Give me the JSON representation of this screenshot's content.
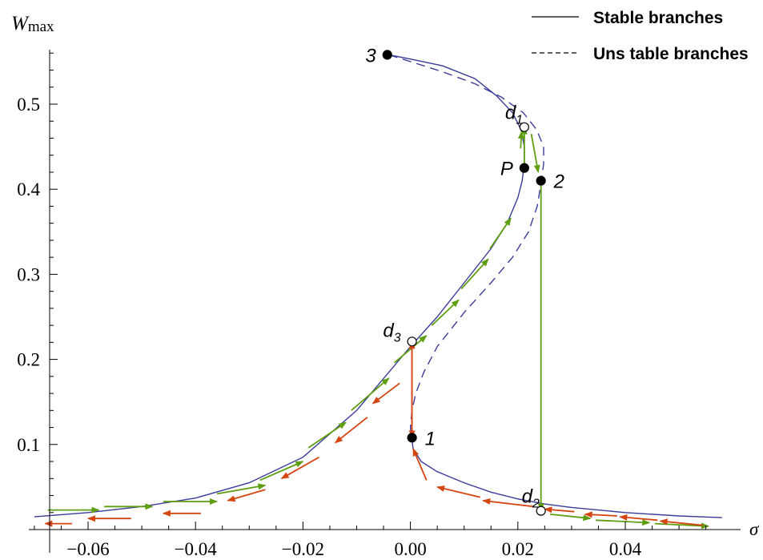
{
  "chart_data": {
    "type": "line",
    "xlabel": "σ",
    "ylabel_main": "W",
    "ylabel_sub": "max",
    "xlim": [
      -0.07,
      0.058
    ],
    "ylim": [
      0,
      0.58
    ],
    "x_ticks": [
      {
        "value": -0.06,
        "label": "−0.06"
      },
      {
        "value": -0.04,
        "label": "−0.04"
      },
      {
        "value": -0.02,
        "label": "−0.02"
      },
      {
        "value": 0.0,
        "label": "0.00"
      },
      {
        "value": 0.02,
        "label": "0.02"
      },
      {
        "value": 0.04,
        "label": "0.04"
      }
    ],
    "y_ticks": [
      {
        "value": 0.1,
        "label": "0.1"
      },
      {
        "value": 0.2,
        "label": "0.2"
      },
      {
        "value": 0.3,
        "label": "0.3"
      },
      {
        "value": 0.4,
        "label": "0.4"
      },
      {
        "value": 0.5,
        "label": "0.5"
      }
    ],
    "legend": {
      "placement": "top-right",
      "entries": [
        {
          "label": "Stable branches",
          "style": "solid"
        },
        {
          "label": "Uns table branches",
          "style": "dashed"
        }
      ]
    },
    "colors": {
      "curve": "#3b3b99",
      "green_arrows": "#5e9e10",
      "red_arrows": "#d44510",
      "axis": "#000000"
    },
    "series": [
      {
        "style": "solid",
        "points": [
          [
            -0.07,
            0.015
          ],
          [
            -0.06,
            0.02
          ],
          [
            -0.05,
            0.027
          ],
          [
            -0.04,
            0.037
          ],
          [
            -0.03,
            0.055
          ],
          [
            -0.02,
            0.085
          ],
          [
            -0.01,
            0.14
          ],
          [
            0.0,
            0.215
          ],
          [
            0.005,
            0.25
          ],
          [
            0.01,
            0.29
          ],
          [
            0.015,
            0.33
          ],
          [
            0.018,
            0.36
          ],
          [
            0.02,
            0.39
          ],
          [
            0.0208,
            0.41
          ],
          [
            0.0212,
            0.43
          ],
          [
            0.0212,
            0.45
          ],
          [
            0.0206,
            0.47
          ],
          [
            0.019,
            0.49
          ],
          [
            0.016,
            0.51
          ],
          [
            0.012,
            0.53
          ],
          [
            0.006,
            0.545
          ],
          [
            0.0,
            0.553
          ],
          [
            -0.004,
            0.558
          ]
        ]
      },
      {
        "style": "dashed",
        "points": [
          [
            -0.004,
            0.558
          ],
          [
            0.0,
            0.55
          ],
          [
            0.006,
            0.538
          ],
          [
            0.012,
            0.524
          ],
          [
            0.017,
            0.508
          ],
          [
            0.021,
            0.49
          ],
          [
            0.0235,
            0.47
          ],
          [
            0.0248,
            0.45
          ],
          [
            0.0248,
            0.43
          ],
          [
            0.0244,
            0.41
          ],
          [
            0.0236,
            0.38
          ],
          [
            0.022,
            0.35
          ],
          [
            0.019,
            0.32
          ],
          [
            0.015,
            0.29
          ],
          [
            0.01,
            0.255
          ],
          [
            0.005,
            0.215
          ],
          [
            0.0025,
            0.185
          ],
          [
            0.001,
            0.16
          ],
          [
            0.0003,
            0.14
          ],
          [
            0.0,
            0.12
          ]
        ]
      },
      {
        "style": "solid",
        "points": [
          [
            0.0,
            0.12
          ],
          [
            0.0005,
            0.095
          ],
          [
            0.002,
            0.08
          ],
          [
            0.005,
            0.068
          ],
          [
            0.01,
            0.055
          ],
          [
            0.015,
            0.044
          ],
          [
            0.02,
            0.036
          ],
          [
            0.025,
            0.03
          ],
          [
            0.03,
            0.026
          ],
          [
            0.04,
            0.02
          ],
          [
            0.05,
            0.016
          ],
          [
            0.058,
            0.014
          ]
        ]
      }
    ],
    "points": [
      {
        "label": "1",
        "x": 0.0003,
        "y": 0.108,
        "filled": true,
        "label_side": "right"
      },
      {
        "label": "2",
        "x": 0.0243,
        "y": 0.41,
        "filled": true,
        "label_side": "right"
      },
      {
        "label": "3",
        "x": -0.0043,
        "y": 0.558,
        "filled": true,
        "label_side": "left"
      },
      {
        "label": "P",
        "x": 0.0212,
        "y": 0.425,
        "filled": true,
        "label_side": "left"
      },
      {
        "label": "d",
        "sub": "1",
        "x": 0.0212,
        "y": 0.473,
        "filled": false,
        "label_side": "above"
      },
      {
        "label": "d",
        "sub": "2",
        "x": 0.0243,
        "y": 0.022,
        "filled": false,
        "label_side": "above"
      },
      {
        "label": "d",
        "sub": "3",
        "x": 0.0003,
        "y": 0.221,
        "filled": false,
        "label_side": "left"
      }
    ],
    "jumps": [
      {
        "color": "green",
        "from": [
          0.0212,
          0.425
        ],
        "to": [
          0.0212,
          0.473
        ]
      },
      {
        "color": "green",
        "from": [
          0.0243,
          0.41
        ],
        "to": [
          0.0243,
          0.022
        ]
      },
      {
        "color": "red",
        "from": [
          0.0003,
          0.108
        ],
        "to": [
          0.0003,
          0.221
        ]
      },
      {
        "color": "red",
        "from": [
          0.0003,
          0.221
        ],
        "to": [
          0.0003,
          0.108
        ]
      }
    ],
    "green_arrows": [
      [
        [
          -0.0675,
          0.023
        ],
        [
          -0.058,
          0.023
        ]
      ],
      [
        [
          -0.057,
          0.027
        ],
        [
          -0.048,
          0.027
        ]
      ],
      [
        [
          -0.046,
          0.033
        ],
        [
          -0.036,
          0.033
        ]
      ],
      [
        [
          -0.036,
          0.042
        ],
        [
          -0.027,
          0.052
        ]
      ],
      [
        [
          -0.028,
          0.058
        ],
        [
          -0.02,
          0.08
        ]
      ],
      [
        [
          -0.019,
          0.096
        ],
        [
          -0.012,
          0.126
        ]
      ],
      [
        [
          -0.011,
          0.14
        ],
        [
          -0.004,
          0.178
        ]
      ],
      [
        [
          -0.003,
          0.196
        ],
        [
          0.003,
          0.228
        ]
      ],
      [
        [
          0.004,
          0.24
        ],
        [
          0.009,
          0.27
        ]
      ],
      [
        [
          0.0095,
          0.283
        ],
        [
          0.0145,
          0.318
        ]
      ],
      [
        [
          0.0148,
          0.33
        ],
        [
          0.0187,
          0.366
        ]
      ],
      [
        [
          0.0205,
          0.448
        ],
        [
          0.0207,
          0.468
        ]
      ],
      [
        [
          0.0225,
          0.465
        ],
        [
          0.0238,
          0.42
        ]
      ],
      [
        [
          0.026,
          0.018
        ],
        [
          0.0335,
          0.013
        ]
      ],
      [
        [
          0.0345,
          0.011
        ],
        [
          0.0445,
          0.008
        ]
      ],
      [
        [
          0.0455,
          0.007
        ],
        [
          0.0555,
          0.004
        ]
      ]
    ],
    "red_arrows": [
      [
        [
          0.0545,
          0.005
        ],
        [
          0.0465,
          0.01
        ]
      ],
      [
        [
          0.046,
          0.011
        ],
        [
          0.039,
          0.015
        ]
      ],
      [
        [
          0.0385,
          0.016
        ],
        [
          0.0325,
          0.018
        ]
      ],
      [
        [
          0.0305,
          0.021
        ],
        [
          0.025,
          0.024
        ]
      ],
      [
        [
          0.023,
          0.027
        ],
        [
          0.0135,
          0.034
        ]
      ],
      [
        [
          0.013,
          0.038
        ],
        [
          0.005,
          0.05
        ]
      ],
      [
        [
          0.003,
          0.058
        ],
        [
          0.0005,
          0.095
        ]
      ],
      [
        [
          -0.002,
          0.172
        ],
        [
          -0.007,
          0.148
        ]
      ],
      [
        [
          -0.008,
          0.132
        ],
        [
          -0.014,
          0.102
        ]
      ],
      [
        [
          -0.017,
          0.085
        ],
        [
          -0.024,
          0.06
        ]
      ],
      [
        [
          -0.027,
          0.047
        ],
        [
          -0.034,
          0.034
        ]
      ],
      [
        [
          -0.039,
          0.019
        ],
        [
          -0.046,
          0.019
        ]
      ],
      [
        [
          -0.052,
          0.013
        ],
        [
          -0.06,
          0.013
        ]
      ],
      [
        [
          -0.063,
          0.007
        ],
        [
          -0.068,
          0.007
        ]
      ]
    ]
  }
}
